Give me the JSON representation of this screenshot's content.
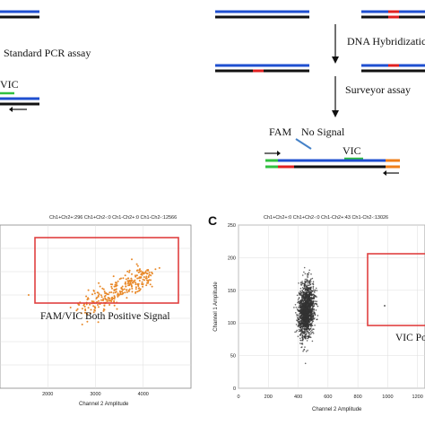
{
  "colors": {
    "dark": "#111111",
    "blue": "#1f4fd0",
    "orange": "#ef7f1a",
    "red": "#e02020",
    "green": "#30c040",
    "steelblue": "#4682c8",
    "box": "#e04040",
    "grid": "#dddddd",
    "dot_a": "#e8892a",
    "dot_c": "#333333"
  },
  "left_flow": {
    "standard_pcr_label": "Standard PCR assay",
    "vic_label": "VIC"
  },
  "right_flow": {
    "hybridization_label": "DNA Hybridizatic",
    "surveyor_label": "Surveyor assay",
    "fam_label": "FAM",
    "no_signal_label": "No  Signal",
    "vic_label": "VIC"
  },
  "panel_a": {
    "header": "Ch1+Ch2+:296   Ch1+Ch2-:0   Ch1-Ch2+:0   Ch1-Ch2-:12566",
    "box_label": "FAM/VIC Both Positive Signal",
    "xlabel": "Channel 2 Amplitude"
  },
  "panel_c": {
    "letter": "C",
    "header": "Ch1+Ch2+:0   Ch1+Ch2-:0   Ch1-Ch2+:43   Ch1-Ch2-:13026",
    "box_label": "VIC Po",
    "xlabel": "Channel 2 Amplitude",
    "ylabel": "Channel 1 Amplitude"
  },
  "chart_data": [
    {
      "type": "scatter",
      "panel": "A",
      "title": "Ch1+Ch2+:296   Ch1+Ch2-:0   Ch1-Ch2+:0   Ch1-Ch2-:12566",
      "xlabel": "Channel 2 Amplitude",
      "ylabel": "",
      "xticks": [
        "2000",
        "3000",
        "4000"
      ],
      "xlim": [
        1000,
        5000
      ],
      "ylim": [
        1000,
        8000
      ],
      "annotation": "FAM/VIC Both Positive Signal",
      "series": [
        {
          "cluster": "double positive",
          "count_shown": 296,
          "x_range": [
            2800,
            4300
          ],
          "y_range": [
            4400,
            6200
          ]
        }
      ]
    },
    {
      "type": "scatter",
      "panel": "C",
      "title": "Ch1+Ch2+:0   Ch1+Ch2-:0   Ch1-Ch2+:43   Ch1-Ch2-:13026",
      "xlabel": "Channel 2 Amplitude",
      "ylabel": "Channel 1 Amplitude",
      "yticks": [
        "0",
        "50",
        "100",
        "150",
        "200",
        "250"
      ],
      "xticks": [
        "0",
        "200",
        "400",
        "600",
        "800",
        "1000",
        "1200"
      ],
      "xlim": [
        0,
        1250
      ],
      "ylim": [
        0,
        250
      ],
      "annotation": "VIC Po",
      "series": [
        {
          "cluster": "double negative",
          "count_shown": 13026,
          "center": [
            455,
            120
          ],
          "x_range": [
            380,
            530
          ],
          "y_range": [
            65,
            180
          ]
        }
      ]
    }
  ]
}
